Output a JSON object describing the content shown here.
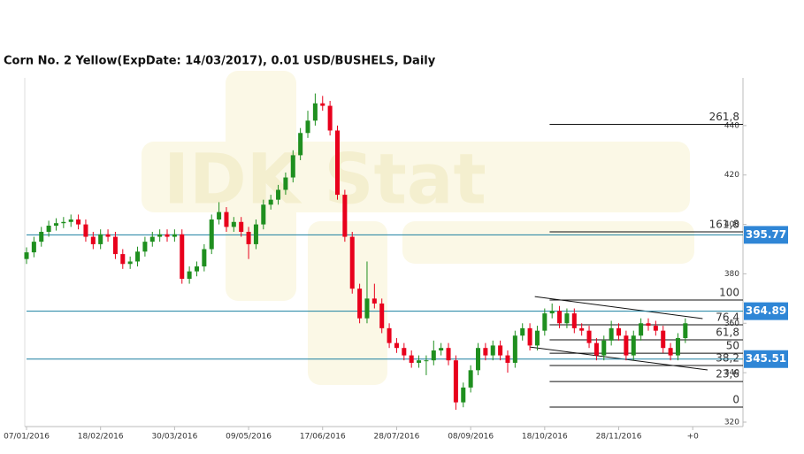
{
  "chart_data": {
    "type": "candlestick",
    "title": "Corn  No. 2 Yellow(ExpDate: 14/03/2017), 0.01 USD/BUSHELS, Daily",
    "watermark": "IDK Stat",
    "up_color": "#1f8f1f",
    "down_color": "#e8001c",
    "x": [
      0,
      3,
      6,
      9,
      12,
      15,
      18,
      21,
      24,
      27,
      30,
      33,
      36,
      39,
      42,
      45,
      48,
      51,
      54,
      57,
      60,
      63,
      66,
      69,
      72,
      75,
      78,
      81,
      84,
      87,
      90,
      93,
      96,
      99,
      102,
      105,
      108,
      111,
      114,
      117,
      120,
      123,
      126,
      129,
      132,
      135,
      138,
      141,
      144,
      147,
      150,
      153,
      156,
      159,
      162,
      165,
      168,
      171,
      174,
      177,
      180,
      183,
      186,
      189,
      192,
      195,
      198,
      201,
      204,
      207,
      210,
      213,
      216,
      219,
      222,
      225,
      228,
      231,
      234,
      237,
      240,
      243,
      246,
      249,
      252,
      255,
      258,
      261,
      264,
      267
    ],
    "open": [
      386,
      388.7,
      393,
      397,
      399.5,
      400.5,
      401,
      402,
      400,
      395,
      392,
      396,
      395,
      388,
      384,
      385,
      389,
      393,
      395,
      396,
      395,
      396,
      378,
      381,
      383,
      390,
      402,
      405,
      399,
      401,
      397,
      392,
      400,
      408,
      410,
      414,
      419,
      428,
      437,
      442,
      449,
      448,
      438,
      412,
      395,
      374,
      362,
      370,
      368,
      358,
      352,
      350,
      347,
      344,
      345,
      345,
      349,
      350,
      345,
      328,
      334,
      341,
      350,
      347,
      351,
      347,
      344,
      355,
      358,
      351,
      357,
      364,
      365,
      360,
      364,
      358,
      357,
      352,
      347,
      353,
      358,
      355,
      347,
      355,
      360,
      359,
      357,
      350,
      347,
      354
    ],
    "high": [
      390.7,
      395,
      399,
      401.5,
      402.5,
      403,
      404,
      404,
      402,
      397,
      398,
      398,
      397,
      390,
      387,
      391,
      395,
      397,
      398,
      398,
      398,
      398,
      383,
      385,
      392,
      404,
      409,
      407,
      403,
      403,
      399,
      402,
      410,
      412,
      416,
      421,
      430,
      439,
      446,
      453,
      452,
      450,
      440,
      414,
      397,
      376,
      385,
      376,
      370,
      360,
      354,
      352,
      349,
      347,
      347,
      353,
      352,
      352,
      347,
      336,
      343,
      352,
      352,
      353,
      353,
      349,
      357,
      360,
      360,
      359,
      366,
      368,
      367,
      366,
      366,
      360,
      359,
      354,
      355,
      361,
      360,
      357,
      357,
      362,
      362,
      361,
      359,
      352,
      356,
      362
    ],
    "low": [
      384,
      386.7,
      391,
      395,
      397.5,
      398.5,
      399,
      398,
      393,
      390,
      390,
      393,
      386,
      382,
      382,
      383,
      387,
      391,
      393,
      393,
      393,
      376,
      376,
      379,
      381,
      388,
      400,
      397,
      397,
      395,
      386,
      390,
      398,
      406,
      408,
      412,
      417,
      426,
      435,
      440,
      446,
      436,
      410,
      393,
      372,
      360,
      360,
      366,
      356,
      350,
      348,
      345,
      342,
      342,
      339,
      343,
      347,
      343,
      325,
      326,
      332,
      339,
      345,
      345,
      345,
      340,
      342,
      353,
      349,
      349,
      355,
      362,
      358,
      358,
      356,
      355,
      350,
      345,
      345,
      351,
      353,
      345,
      345,
      353,
      357,
      355,
      348,
      345,
      345,
      352
    ],
    "close": [
      388.7,
      393,
      397,
      399.5,
      400.5,
      401,
      402,
      400,
      395,
      392,
      396,
      395,
      388,
      384,
      385,
      389,
      393,
      395,
      396,
      395,
      396,
      378,
      381,
      383,
      390,
      402,
      405,
      399,
      401,
      397,
      392,
      400,
      408,
      410,
      414,
      419,
      428,
      437,
      442,
      449,
      448,
      438,
      412,
      395,
      374,
      362,
      370,
      368,
      358,
      352,
      350,
      347,
      344,
      345,
      345,
      349,
      350,
      345,
      328,
      334,
      341,
      350,
      347,
      351,
      347,
      344,
      355,
      358,
      351,
      357,
      364,
      365,
      360,
      364,
      358,
      357,
      352,
      347,
      353,
      358,
      355,
      347,
      355,
      360,
      359,
      357,
      350,
      347,
      354,
      360
    ],
    "xlim": [
      0,
      290
    ],
    "xticks": [
      {
        "value": 0,
        "label": "07/01/2016"
      },
      {
        "value": 30,
        "label": "18/02/2016"
      },
      {
        "value": 60,
        "label": "30/03/2016"
      },
      {
        "value": 90,
        "label": "09/05/2016"
      },
      {
        "value": 120,
        "label": "17/06/2016"
      },
      {
        "value": 150,
        "label": "28/07/2016"
      },
      {
        "value": 180,
        "label": "08/09/2016"
      },
      {
        "value": 210,
        "label": "18/10/2016"
      },
      {
        "value": 240,
        "label": "28/11/2016"
      },
      {
        "value": 270,
        "label": "+0"
      }
    ],
    "ylim": [
      318.2,
      459.3
    ],
    "yticks": [
      320,
      340,
      360,
      380,
      400,
      420,
      440
    ],
    "price_levels": [
      395.77,
      364.89,
      345.51
    ],
    "price_level_color": "#1a7fa0",
    "fibonacci": {
      "start_x": 212,
      "levels": [
        {
          "label": "261,8",
          "value": 440.5
        },
        {
          "label": "161,8",
          "value": 397.0
        },
        {
          "label": "100",
          "value": 369.4
        },
        {
          "label": "76,4",
          "value": 359.4
        },
        {
          "label": "61,8",
          "value": 353.3
        },
        {
          "label": "50",
          "value": 347.9
        },
        {
          "label": "38,2",
          "value": 342.9
        },
        {
          "label": "23,6",
          "value": 336.4
        },
        {
          "label": "0",
          "value": 326.1
        }
      ]
    },
    "trendlines": [
      {
        "x": [
          206,
          274
        ],
        "y": [
          370.8,
          361.9
        ]
      },
      {
        "x": [
          204,
          276
        ],
        "y": [
          350.4,
          341.1
        ]
      }
    ]
  }
}
